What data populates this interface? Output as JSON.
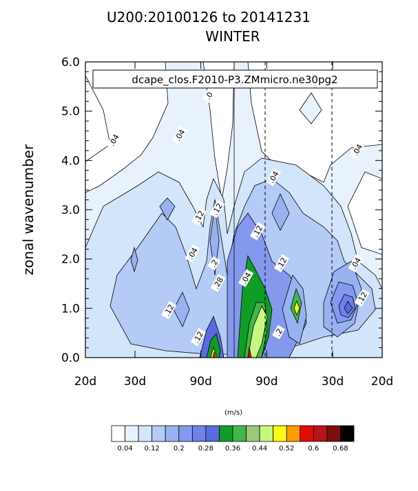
{
  "chart_data": {
    "type": "contour",
    "title_line1": "U200:20100126 to 20141231",
    "title_line2": "WINTER",
    "legend_label": "dcape_clos.F2010-P3.ZMmicro.ne30pg2",
    "ylabel": "zonal wavenumber",
    "y_ticks": [
      "0.0",
      "1.0",
      "2.0",
      "3.0",
      "4.0",
      "5.0",
      "6.0"
    ],
    "ylim": [
      0,
      6
    ],
    "x_ticks": [
      "20d",
      "30d",
      "90d",
      "90d",
      "30d",
      "20d"
    ],
    "x_tick_freqs": [
      -0.05,
      -0.0333,
      -0.0111,
      0.0111,
      0.0333,
      0.05
    ],
    "xlim": [
      -0.05,
      0.05
    ],
    "units": "(m/s)",
    "contour_labels": [
      {
        "text": ".04",
        "x": -0.04,
        "y": 4.4
      },
      {
        "text": ".04",
        "x": -0.0178,
        "y": 4.5
      },
      {
        "text": ".0",
        "x": -0.008,
        "y": 5.3
      },
      {
        "text": ".04",
        "x": -0.0135,
        "y": 2.1
      },
      {
        "text": ".04",
        "x": 0.0045,
        "y": 1.6
      },
      {
        "text": ".04",
        "x": 0.0138,
        "y": 3.65
      },
      {
        "text": ".04",
        "x": 0.042,
        "y": 4.2
      },
      {
        "text": ".04",
        "x": 0.0415,
        "y": 1.9
      },
      {
        "text": ".12",
        "x": -0.0215,
        "y": 0.95
      },
      {
        "text": ".12",
        "x": -0.0113,
        "y": 2.85
      },
      {
        "text": ".12",
        "x": 0.0084,
        "y": 2.55
      },
      {
        "text": ".12",
        "x": 0.0165,
        "y": 1.9
      },
      {
        "text": ".12",
        "x": 0.0436,
        "y": 1.2
      },
      {
        "text": ".12",
        "x": -0.0052,
        "y": 3.0
      },
      {
        "text": ".12",
        "x": -0.0116,
        "y": 0.4
      },
      {
        "text": ".2",
        "x": -0.0063,
        "y": 1.9
      },
      {
        "text": ".28",
        "x": -0.0049,
        "y": 1.5
      },
      {
        "text": ".2",
        "x": 0.0155,
        "y": 0.5
      }
    ],
    "colorbar_levels": [
      "0.04",
      "0.12",
      "0.2",
      "0.28",
      "0.36",
      "0.44",
      "0.52",
      "0.6",
      "0.68"
    ],
    "colorbar_colors": [
      "#ffffff",
      "#e8f2fd",
      "#d2e5fb",
      "#b4cbf6",
      "#98b2f1",
      "#8499ed",
      "#6d81e8",
      "#5a6ae1",
      "#0f9d26",
      "#41b847",
      "#99c97c",
      "#c6f781",
      "#fbfb14",
      "#ff9c00",
      "#e10c04",
      "#b51419",
      "#7c0e0e",
      "#000000"
    ]
  }
}
